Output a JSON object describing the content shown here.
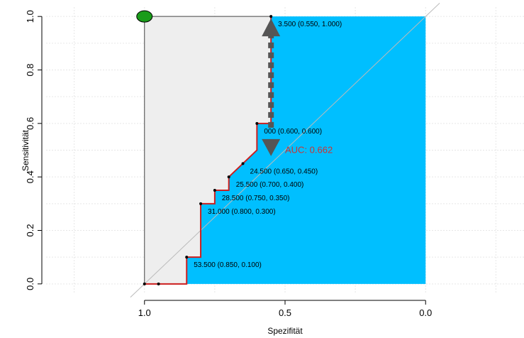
{
  "chart_data": {
    "type": "line",
    "title": "",
    "xlabel": "Spezifität",
    "ylabel": "Sensitivität",
    "xlim": [
      1.35,
      -0.35
    ],
    "ylim": [
      -0.035,
      1.035
    ],
    "x_ticks": [
      {
        "value": 1.0,
        "label": "1.0"
      },
      {
        "value": 0.5,
        "label": "0.5"
      },
      {
        "value": 0.0,
        "label": "0.0"
      }
    ],
    "y_ticks": [
      {
        "value": 0.0,
        "label": "0.0"
      },
      {
        "value": 0.2,
        "label": "0.2"
      },
      {
        "value": 0.4,
        "label": "0.4"
      },
      {
        "value": 0.6,
        "label": "0.6"
      },
      {
        "value": 0.8,
        "label": "0.8"
      },
      {
        "value": 1.0,
        "label": "1.0"
      }
    ],
    "grid": true,
    "series": [
      {
        "x": [
          1.0,
          0.95,
          0.85,
          0.85,
          0.8,
          0.8,
          0.75,
          0.75,
          0.7,
          0.7,
          0.65,
          0.6,
          0.6,
          0.55,
          0.55,
          0.55
        ],
        "y": [
          0.0,
          0.0,
          0.0,
          0.1,
          0.1,
          0.3,
          0.3,
          0.35,
          0.35,
          0.4,
          0.45,
          0.5,
          0.6,
          0.6,
          1.0,
          1.0
        ],
        "color": "#cc1f1f"
      }
    ],
    "points": [
      {
        "x": 1.0,
        "y": 0.0
      },
      {
        "x": 0.95,
        "y": 0.0
      },
      {
        "x": 0.85,
        "y": 0.1
      },
      {
        "x": 0.8,
        "y": 0.3
      },
      {
        "x": 0.75,
        "y": 0.35
      },
      {
        "x": 0.7,
        "y": 0.4
      },
      {
        "x": 0.65,
        "y": 0.45
      },
      {
        "x": 0.6,
        "y": 0.6
      },
      {
        "x": 0.55,
        "y": 1.0
      }
    ],
    "point_labels": [
      {
        "x": 0.85,
        "y": 0.1,
        "text": "53.500 (0.850, 0.100)"
      },
      {
        "x": 0.8,
        "y": 0.3,
        "text": "31.000 (0.800, 0.300)"
      },
      {
        "x": 0.75,
        "y": 0.35,
        "text": "28.500 (0.750, 0.350)"
      },
      {
        "x": 0.7,
        "y": 0.4,
        "text": "25.500 (0.700, 0.400)"
      },
      {
        "x": 0.65,
        "y": 0.45,
        "text": "24.500 (0.650, 0.450)"
      },
      {
        "x": 0.6,
        "y": 0.6,
        "text": "000 (0.600, 0.600)"
      },
      {
        "x": 0.55,
        "y": 1.0,
        "text": "3.500 (0.550, 1.000)"
      }
    ],
    "auc": {
      "text": "AUC: 0.662",
      "x": 0.5,
      "y": 0.49
    },
    "marker": {
      "x": 1.0,
      "y": 1.0,
      "color": "#1a9c1a"
    },
    "arrow": {
      "x": 0.55,
      "y_from": 0.6,
      "y_to": 1.0,
      "color": "#555555"
    },
    "colors": {
      "auc_fill": "#00bfff",
      "polygon_fill": "#eeeeee",
      "roc_line": "#cc1f1f",
      "diagonal": "#bbbbbb",
      "auc_text": "#cc3333"
    }
  }
}
